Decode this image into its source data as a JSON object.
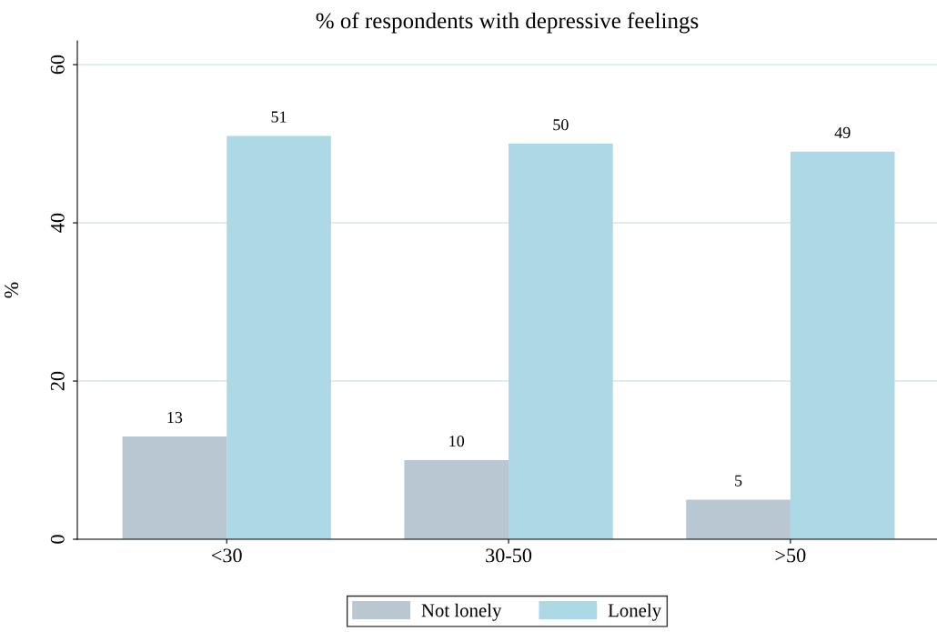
{
  "chart_data": {
    "type": "bar",
    "title": "% of respondents with depressive feelings",
    "ylabel": "%",
    "categories": [
      "<30",
      "30-50",
      ">50"
    ],
    "series": [
      {
        "name": "Not lonely",
        "color": "#b9c7d3",
        "values": [
          13,
          10,
          5
        ]
      },
      {
        "name": "Lonely",
        "color": "#add8e6",
        "values": [
          51,
          50,
          49
        ]
      }
    ],
    "ylim": [
      0,
      63
    ],
    "yticks": [
      0,
      20,
      40,
      60
    ],
    "grid": "y",
    "legend": "bottom",
    "data_labels": true
  }
}
